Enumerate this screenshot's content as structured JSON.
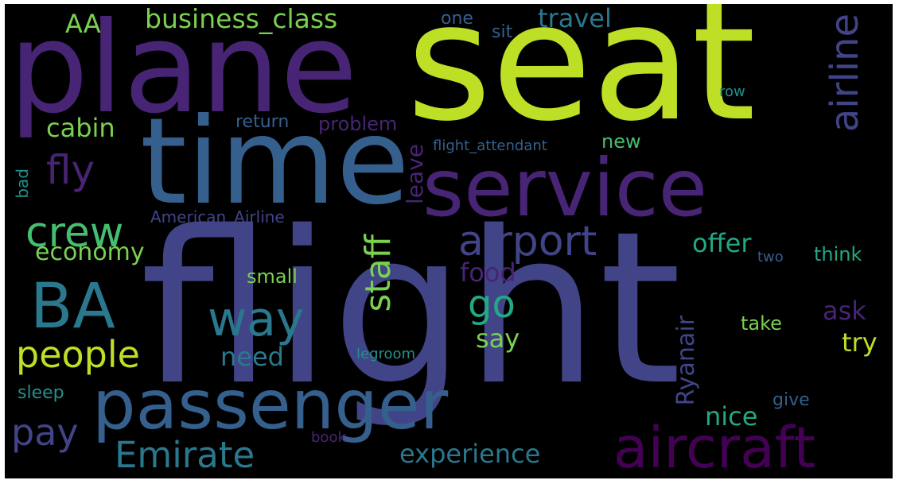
{
  "background": "#000000",
  "palette": [
    "#440154",
    "#482475",
    "#414487",
    "#355f8d",
    "#2a788e",
    "#21918c",
    "#22a884",
    "#44bf70",
    "#7ad151",
    "#bddf26"
  ],
  "words": [
    {
      "text": "flight",
      "color": "#414487"
    },
    {
      "text": "seat",
      "color": "#bddf26"
    },
    {
      "text": "plane",
      "color": "#482475"
    },
    {
      "text": "time",
      "color": "#355f8d"
    },
    {
      "text": "service",
      "color": "#482475"
    },
    {
      "text": "passenger",
      "color": "#355f8d"
    },
    {
      "text": "aircraft",
      "color": "#440154"
    },
    {
      "text": "airline",
      "color": "#414487"
    },
    {
      "text": "BA",
      "color": "#2a788e"
    },
    {
      "text": "airport",
      "color": "#414487"
    },
    {
      "text": "staff",
      "color": "#7ad151"
    },
    {
      "text": "way",
      "color": "#2a788e"
    },
    {
      "text": "crew",
      "color": "#44bf70"
    },
    {
      "text": "people",
      "color": "#bddf26"
    },
    {
      "text": "go",
      "color": "#22a884"
    },
    {
      "text": "Emirate",
      "color": "#2a788e"
    },
    {
      "text": "pay",
      "color": "#414487"
    },
    {
      "text": "fly",
      "color": "#482475"
    },
    {
      "text": "business_class",
      "color": "#7ad151"
    },
    {
      "text": "experience",
      "color": "#2a788e"
    },
    {
      "text": "Ryanair",
      "color": "#414487"
    },
    {
      "text": "economy",
      "color": "#7ad151"
    },
    {
      "text": "American_Airline",
      "color": "#414487"
    },
    {
      "text": "cabin",
      "color": "#7ad151"
    },
    {
      "text": "travel",
      "color": "#2a788e"
    },
    {
      "text": "offer",
      "color": "#22a884"
    },
    {
      "text": "food",
      "color": "#482475"
    },
    {
      "text": "nice",
      "color": "#22a884"
    },
    {
      "text": "need",
      "color": "#2a788e"
    },
    {
      "text": "try",
      "color": "#bddf26"
    },
    {
      "text": "ask",
      "color": "#482475"
    },
    {
      "text": "say",
      "color": "#7ad151"
    },
    {
      "text": "leave",
      "color": "#482475"
    },
    {
      "text": "AA",
      "color": "#7ad151"
    },
    {
      "text": "return",
      "color": "#355f8d"
    },
    {
      "text": "problem",
      "color": "#482475"
    },
    {
      "text": "new",
      "color": "#44bf70"
    },
    {
      "text": "think",
      "color": "#22a884"
    },
    {
      "text": "take",
      "color": "#7ad151"
    },
    {
      "text": "small",
      "color": "#7ad151"
    },
    {
      "text": "sleep",
      "color": "#21918c"
    },
    {
      "text": "give",
      "color": "#355f8d"
    },
    {
      "text": "one",
      "color": "#355f8d"
    },
    {
      "text": "sit",
      "color": "#355f8d"
    },
    {
      "text": "bad",
      "color": "#21918c"
    },
    {
      "text": "flight_attendant",
      "color": "#355f8d"
    },
    {
      "text": "legroom",
      "color": "#21918c"
    },
    {
      "text": "row",
      "color": "#21918c"
    },
    {
      "text": "two",
      "color": "#355f8d"
    },
    {
      "text": "book",
      "color": "#482475"
    }
  ]
}
